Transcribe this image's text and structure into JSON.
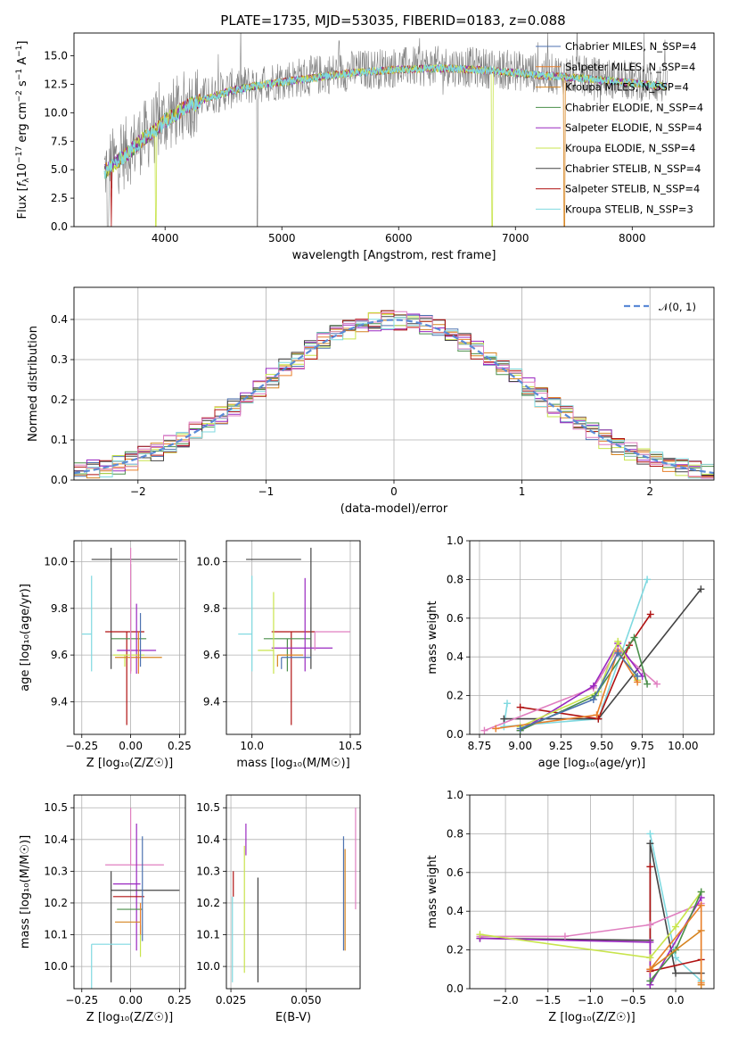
{
  "title": "PLATE=1735, MJD=53035, FIBERID=0183, z=0.088",
  "colors": {
    "Chabrier MILES": "#4c72b0",
    "Salpeter MILES": "#e87f2a",
    "Kroupa MILES": "#d68420",
    "Chabrier ELODIE": "#4a8f4a",
    "Salpeter ELODIE": "#9a28c0",
    "Kroupa ELODIE": "#c8e44c",
    "Chabrier STELIB": "#444444",
    "Salpeter STELIB": "#b01212",
    "Kroupa STELIB": "#7fd9e0",
    "pink": "#e07fc0",
    "gauss": "#5b8ad6",
    "obs": "#808080"
  },
  "chart_data": [
    {
      "type": "line",
      "id": "spectrum",
      "title": "PLATE=1735, MJD=53035, FIBERID=0183, z=0.088",
      "xlabel": "wavelength [Angstrom, rest frame]",
      "ylabel": "Flux [f_λ10^-17 erg cm^-2 s^-1 A^-1]",
      "xlim": [
        3220,
        8700
      ],
      "ylim": [
        0,
        17
      ],
      "xticks": [
        4000,
        5000,
        6000,
        7000,
        8000
      ],
      "yticks": [
        0.0,
        2.5,
        5.0,
        7.5,
        10.0,
        12.5,
        15.0
      ],
      "ytick_labels": [
        "0.0",
        "2.5",
        "5.0",
        "7.5",
        "10.0",
        "12.5",
        "15.0"
      ],
      "continuum": {
        "x": [
          3480,
          3600,
          3700,
          3800,
          3900,
          4000,
          4200,
          4400,
          4600,
          4800,
          5000,
          5300,
          5600,
          6000,
          6400,
          6800,
          7200,
          7600,
          8000,
          8300
        ],
        "y": [
          5.0,
          6.0,
          6.8,
          7.8,
          8.5,
          9.5,
          10.8,
          11.6,
          12.2,
          12.6,
          12.9,
          13.3,
          13.7,
          14.0,
          14.1,
          13.9,
          13.5,
          13.2,
          12.8,
          12.5
        ]
      },
      "legend": {
        "position": "upper right",
        "entries": [
          {
            "label": "Chabrier MILES, N_SSP=4",
            "color": "#4c72b0"
          },
          {
            "label": "Salpeter MILES, N_SSP=4",
            "color": "#e87f2a"
          },
          {
            "label": "Kroupa MILES, N_SSP=4",
            "color": "#d68420"
          },
          {
            "label": "Chabrier ELODIE, N_SSP=4",
            "color": "#4a8f4a"
          },
          {
            "label": "Salpeter ELODIE, N_SSP=4",
            "color": "#9a28c0"
          },
          {
            "label": "Kroupa ELODIE, N_SSP=4",
            "color": "#c8e44c"
          },
          {
            "label": "Chabrier STELIB, N_SSP=4",
            "color": "#444444"
          },
          {
            "label": "Salpeter STELIB, N_SSP=4",
            "color": "#b01212"
          },
          {
            "label": "Kroupa STELIB, N_SSP=3",
            "color": "#7fd9e0"
          }
        ]
      }
    },
    {
      "type": "histogram",
      "id": "residuals",
      "xlabel": "(data-model)/error",
      "ylabel": "Normed distribution",
      "xlim": [
        -2.5,
        2.5
      ],
      "ylim": [
        0,
        0.48
      ],
      "xticks": [
        -2,
        -1,
        0,
        1,
        2
      ],
      "xtick_labels": [
        "−2",
        "−1",
        "0",
        "1",
        "2"
      ],
      "yticks": [
        0.0,
        0.1,
        0.2,
        0.3,
        0.4
      ],
      "ytick_labels": [
        "0.0",
        "0.1",
        "0.2",
        "0.3",
        "0.4"
      ],
      "bin_width": 0.1,
      "gaussian_label": "𝒩(0, 1)",
      "gaussian_peak": 0.399
    },
    {
      "type": "scatter",
      "id": "age-Z",
      "xlabel": "Z [log₁₀(Z/Z☉)]",
      "ylabel": "age  [log₁₀(age/yr)]",
      "xlim": [
        -0.29,
        0.28
      ],
      "ylim": [
        9.26,
        10.09
      ],
      "xticks": [
        -0.25,
        0.0,
        0.25
      ],
      "xtick_labels": [
        "−0.25",
        "0.00",
        "0.25"
      ],
      "yticks": [
        9.4,
        9.6,
        9.8,
        10.0
      ],
      "ytick_labels": [
        "9.4",
        "9.6",
        "9.8",
        "10.0"
      ],
      "points": [
        {
          "model": "Chabrier STELIB",
          "x": 0.02,
          "y": 10.01,
          "xerr": [
            0.22,
            0.22
          ],
          "yerr": [
            0.0,
            0.0
          ]
        },
        {
          "model": "Kroupa STELIB",
          "x": -0.2,
          "y": 9.69,
          "xerr": [
            0.05,
            0.0
          ],
          "yerr": [
            0.16,
            0.25
          ]
        },
        {
          "model": "Chabrier STELIB",
          "x": -0.1,
          "y": 9.62,
          "xerr": [
            0.0,
            0.0
          ],
          "yerr": [
            0.08,
            0.44
          ]
        },
        {
          "model": "Salpeter STELIB",
          "x": -0.02,
          "y": 9.7,
          "xerr": [
            0.11,
            0.09
          ],
          "yerr": [
            0.4,
            0.0
          ]
        },
        {
          "model": "Chabrier ELODIE",
          "x": 0.0,
          "y": 9.67,
          "xerr": [
            0.1,
            0.08
          ],
          "yerr": [
            0.14,
            0.32
          ]
        },
        {
          "model": "Salpeter ELODIE",
          "x": 0.03,
          "y": 9.62,
          "xerr": [
            0.1,
            0.1
          ],
          "yerr": [
            0.1,
            0.2
          ]
        },
        {
          "model": "Kroupa ELODIE",
          "x": -0.03,
          "y": 9.6,
          "xerr": [
            0.06,
            0.1
          ],
          "yerr": [
            0.05,
            0.0
          ]
        },
        {
          "model": "Kroupa MILES",
          "x": 0.0,
          "y": 9.59,
          "xerr": [
            0.08,
            0.16
          ],
          "yerr": [
            0.06,
            0.0
          ]
        },
        {
          "model": "pink",
          "x": 0.0,
          "y": 9.6,
          "xerr": [
            0.0,
            0.0
          ],
          "yerr": [
            0.08,
            0.46
          ]
        },
        {
          "model": "Chabrier MILES",
          "x": 0.05,
          "y": 9.62,
          "xerr": [
            0.0,
            0.0
          ],
          "yerr": [
            0.07,
            0.16
          ]
        },
        {
          "model": "Salpeter MILES",
          "x": 0.04,
          "y": 9.58,
          "xerr": [
            0.0,
            0.0
          ],
          "yerr": [
            0.06,
            0.12
          ]
        }
      ]
    },
    {
      "type": "scatter",
      "id": "age-mass",
      "xlabel": "mass [log₁₀(M/M☉)]",
      "ylabel": "",
      "xlim": [
        9.87,
        10.55
      ],
      "ylim": [
        9.26,
        10.09
      ],
      "xticks": [
        10.0,
        10.5
      ],
      "xtick_labels": [
        "10.0",
        "10.5"
      ],
      "yticks": [
        9.4,
        9.6,
        9.8,
        10.0
      ],
      "ytick_labels": [
        "9.4",
        "9.6",
        "9.8",
        "10.0"
      ],
      "points": [
        {
          "model": "Chabrier STELIB",
          "x": 10.22,
          "y": 10.01,
          "xerr": [
            0.25,
            0.03
          ],
          "yerr": [
            0.0,
            0.0
          ]
        },
        {
          "model": "Kroupa STELIB",
          "x": 10.0,
          "y": 9.69,
          "xerr": [
            0.07,
            0.0
          ],
          "yerr": [
            0.16,
            0.25
          ]
        },
        {
          "model": "Salpeter STELIB",
          "x": 10.2,
          "y": 9.7,
          "xerr": [
            0.1,
            0.12
          ],
          "yerr": [
            0.4,
            0.0
          ]
        },
        {
          "model": "Chabrier STELIB",
          "x": 10.3,
          "y": 9.62,
          "xerr": [
            0.0,
            0.0
          ],
          "yerr": [
            0.08,
            0.44
          ]
        },
        {
          "model": "Chabrier ELODIE",
          "x": 10.18,
          "y": 9.67,
          "xerr": [
            0.12,
            0.12
          ],
          "yerr": [
            0.14,
            0.0
          ]
        },
        {
          "model": "Salpeter ELODIE",
          "x": 10.27,
          "y": 9.63,
          "xerr": [
            0.17,
            0.14
          ],
          "yerr": [
            0.1,
            0.3
          ]
        },
        {
          "model": "Kroupa ELODIE",
          "x": 10.11,
          "y": 9.62,
          "xerr": [
            0.08,
            0.0
          ],
          "yerr": [
            0.1,
            0.25
          ]
        },
        {
          "model": "pink",
          "x": 10.32,
          "y": 9.7,
          "xerr": [
            0.0,
            0.18
          ],
          "yerr": [
            0.08,
            0.0
          ]
        },
        {
          "model": "Kroupa MILES",
          "x": 10.13,
          "y": 9.6,
          "xerr": [
            0.0,
            0.13
          ],
          "yerr": [
            0.05,
            0.0
          ]
        },
        {
          "model": "Chabrier MILES",
          "x": 10.15,
          "y": 9.59,
          "xerr": [
            0.0,
            0.15
          ],
          "yerr": [
            0.05,
            0.0
          ]
        }
      ]
    },
    {
      "type": "line",
      "id": "weight-age",
      "xlabel": "age  [log₁₀(age/yr)]",
      "ylabel": "mass weight",
      "xlim": [
        8.69,
        10.19
      ],
      "ylim": [
        0,
        1
      ],
      "xticks": [
        8.75,
        9.0,
        9.25,
        9.5,
        9.75,
        10.0
      ],
      "xtick_labels": [
        "8.75",
        "9.00",
        "9.25",
        "9.50",
        "9.75",
        "10.00"
      ],
      "yticks": [
        0.0,
        0.2,
        0.4,
        0.6,
        0.8,
        1.0
      ],
      "ytick_labels": [
        "0.0",
        "0.2",
        "0.4",
        "0.6",
        "0.8",
        "1.0"
      ],
      "series": [
        {
          "model": "Kroupa STELIB",
          "x": [
            8.92,
            8.9,
            9.48,
            9.78
          ],
          "y": [
            0.16,
            0.04,
            0.08,
            0.8
          ]
        },
        {
          "model": "Chabrier STELIB",
          "x": [
            8.9,
            9.48,
            10.11
          ],
          "y": [
            0.08,
            0.08,
            0.75
          ]
        },
        {
          "model": "Salpeter STELIB",
          "x": [
            9.0,
            9.48,
            9.67,
            9.8
          ],
          "y": [
            0.14,
            0.08,
            0.46,
            0.62
          ]
        },
        {
          "model": "pink",
          "x": [
            8.78,
            9.45,
            9.6,
            9.84
          ],
          "y": [
            0.02,
            0.24,
            0.44,
            0.26
          ]
        },
        {
          "model": "Salpeter ELODIE",
          "x": [
            9.0,
            9.45,
            9.6,
            9.75
          ],
          "y": [
            0.02,
            0.25,
            0.47,
            0.3
          ]
        },
        {
          "model": "Kroupa ELODIE",
          "x": [
            9.0,
            9.48,
            9.6,
            9.72
          ],
          "y": [
            0.04,
            0.22,
            0.48,
            0.28
          ]
        },
        {
          "model": "Chabrier ELODIE",
          "x": [
            9.0,
            9.46,
            9.7,
            9.78
          ],
          "y": [
            0.02,
            0.2,
            0.5,
            0.26
          ]
        },
        {
          "model": "Salpeter MILES",
          "x": [
            8.85,
            9.47,
            9.6,
            9.72
          ],
          "y": [
            0.03,
            0.1,
            0.43,
            0.27
          ]
        },
        {
          "model": "Chabrier MILES",
          "x": [
            9.0,
            9.45,
            9.6,
            9.72
          ],
          "y": [
            0.03,
            0.18,
            0.42,
            0.3
          ]
        }
      ]
    },
    {
      "type": "scatter",
      "id": "mass-Z",
      "xlabel": "Z [log₁₀(Z/Z☉)]",
      "ylabel": "mass [log₁₀(M/M☉)]",
      "xlim": [
        -0.29,
        0.28
      ],
      "ylim": [
        9.93,
        10.54
      ],
      "xticks": [
        -0.25,
        0.0,
        0.25
      ],
      "xtick_labels": [
        "−0.25",
        "0.00",
        "0.25"
      ],
      "yticks": [
        10.0,
        10.1,
        10.2,
        10.3,
        10.4,
        10.5
      ],
      "ytick_labels": [
        "10.0",
        "10.1",
        "10.2",
        "10.3",
        "10.4",
        "10.5"
      ],
      "points": [
        {
          "model": "pink",
          "x": 0.0,
          "y": 10.32,
          "xerr": [
            0.13,
            0.17
          ],
          "yerr": [
            0.0,
            0.18
          ]
        },
        {
          "model": "Salpeter ELODIE",
          "x": 0.03,
          "y": 10.26,
          "xerr": [
            0.12,
            0.02
          ],
          "yerr": [
            0.21,
            0.19
          ]
        },
        {
          "model": "Chabrier STELIB",
          "x": -0.1,
          "y": 10.24,
          "xerr": [
            0.0,
            0.35
          ],
          "yerr": [
            0.29,
            0.06
          ]
        },
        {
          "model": "Salpeter STELIB",
          "x": 0.03,
          "y": 10.22,
          "xerr": [
            0.12,
            0.04
          ],
          "yerr": [
            0.0,
            0.0
          ]
        },
        {
          "model": "Chabrier ELODIE",
          "x": 0.02,
          "y": 10.18,
          "xerr": [
            0.09,
            0.04
          ],
          "yerr": [
            0.0,
            0.0
          ]
        },
        {
          "model": "Kroupa MILES",
          "x": 0.0,
          "y": 10.14,
          "xerr": [
            0.08,
            0.05
          ],
          "yerr": [
            0.0,
            0.0
          ]
        },
        {
          "model": "Kroupa ELODIE",
          "x": 0.05,
          "y": 10.13,
          "xerr": [
            0.0,
            0.0
          ],
          "yerr": [
            0.1,
            0.0
          ]
        },
        {
          "model": "Kroupa STELIB",
          "x": -0.2,
          "y": 10.07,
          "xerr": [
            0.0,
            0.2
          ],
          "yerr": [
            0.15,
            0.0
          ]
        },
        {
          "model": "Chabrier MILES",
          "x": 0.06,
          "y": 10.2,
          "xerr": [
            0.0,
            0.0
          ],
          "yerr": [
            0.12,
            0.21
          ]
        },
        {
          "model": "Salpeter MILES",
          "x": 0.05,
          "y": 10.2,
          "xerr": [
            0.0,
            0.0
          ],
          "yerr": [
            0.1,
            0.0
          ]
        }
      ]
    },
    {
      "type": "scatter",
      "id": "mass-ebv",
      "xlabel": "E(B-V)",
      "ylabel": "",
      "xlim": [
        0.0235,
        0.068
      ],
      "ylim": [
        9.93,
        10.54
      ],
      "xticks": [
        0.025,
        0.05
      ],
      "xtick_labels": [
        "0.025",
        "0.050"
      ],
      "yticks": [
        10.0,
        10.1,
        10.2,
        10.3,
        10.4,
        10.5
      ],
      "ytick_labels": [
        "10.0",
        "10.1",
        "10.2",
        "10.3",
        "10.4",
        "10.5"
      ],
      "segments": [
        {
          "model": "Kroupa STELIB",
          "x": 0.0255,
          "y0": 9.95,
          "y1": 10.22
        },
        {
          "model": "Salpeter STELIB",
          "x": 0.0258,
          "y0": 10.22,
          "y1": 10.3
        },
        {
          "model": "Kroupa ELODIE",
          "x": 0.0295,
          "y0": 9.98,
          "y1": 10.38
        },
        {
          "model": "Salpeter ELODIE",
          "x": 0.03,
          "y0": 10.35,
          "y1": 10.45
        },
        {
          "model": "Chabrier STELIB",
          "x": 0.034,
          "y0": 9.95,
          "y1": 10.28
        },
        {
          "model": "Chabrier MILES",
          "x": 0.0625,
          "y0": 10.05,
          "y1": 10.41
        },
        {
          "model": "Kroupa MILES",
          "x": 0.063,
          "y0": 10.05,
          "y1": 10.37
        },
        {
          "model": "pink",
          "x": 0.0665,
          "y0": 10.18,
          "y1": 10.5
        }
      ]
    },
    {
      "type": "line",
      "id": "weight-Z",
      "xlabel": "Z [log₁₀(Z/Z☉)]",
      "ylabel": "mass weight",
      "xlim": [
        -2.42,
        0.45
      ],
      "ylim": [
        0,
        1
      ],
      "xticks": [
        -2.0,
        -1.5,
        -1.0,
        -0.5,
        0.0
      ],
      "xtick_labels": [
        "−2.0",
        "−1.5",
        "−1.0",
        "−0.5",
        "0.0"
      ],
      "yticks": [
        0.0,
        0.2,
        0.4,
        0.6,
        0.8,
        1.0
      ],
      "ytick_labels": [
        "0.0",
        "0.2",
        "0.4",
        "0.6",
        "0.8",
        "1.0"
      ],
      "series": [
        {
          "model": "Kroupa STELIB",
          "x": [
            -0.3,
            0.0,
            0.3
          ],
          "y": [
            0.8,
            0.16,
            0.04
          ]
        },
        {
          "model": "Chabrier STELIB",
          "x": [
            -2.3,
            -0.3,
            -0.3,
            0.0,
            0.3
          ],
          "y": [
            0.26,
            0.25,
            0.75,
            0.08,
            0.08
          ]
        },
        {
          "model": "Salpeter STELIB",
          "x": [
            -0.3,
            -0.3,
            0.3
          ],
          "y": [
            0.63,
            0.09,
            0.15
          ]
        },
        {
          "model": "pink",
          "x": [
            -2.3,
            -1.3,
            -0.3,
            0.3
          ],
          "y": [
            0.27,
            0.27,
            0.33,
            0.44
          ]
        },
        {
          "model": "Salpeter ELODIE",
          "x": [
            -2.3,
            -0.3,
            -0.3,
            0.3
          ],
          "y": [
            0.26,
            0.24,
            0.02,
            0.47
          ]
        },
        {
          "model": "Kroupa ELODIE",
          "x": [
            -2.3,
            -0.3,
            0.0,
            0.3
          ],
          "y": [
            0.28,
            0.16,
            0.32,
            0.5
          ]
        },
        {
          "model": "Chabrier ELODIE",
          "x": [
            -0.3,
            0.0,
            0.3
          ],
          "y": [
            0.04,
            0.2,
            0.5
          ]
        },
        {
          "model": "Kroupa MILES",
          "x": [
            -0.3,
            0.3,
            0.3
          ],
          "y": [
            0.1,
            0.3,
            0.02
          ]
        },
        {
          "model": "Salpeter MILES",
          "x": [
            -0.3,
            0.3,
            0.3
          ],
          "y": [
            0.1,
            0.43,
            0.03
          ]
        }
      ]
    }
  ]
}
